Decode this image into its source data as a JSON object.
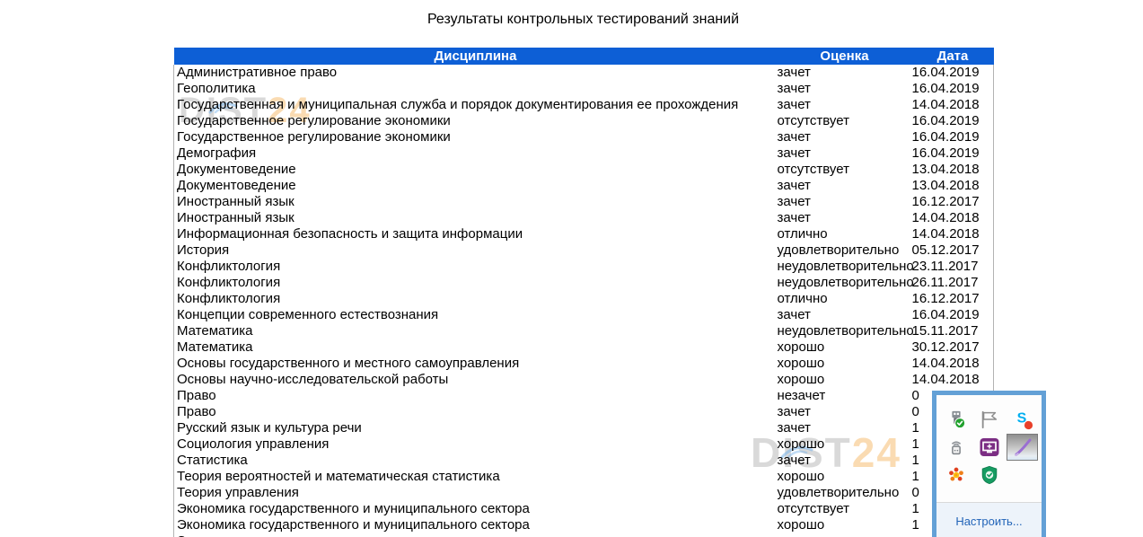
{
  "page": {
    "title": "Результаты контрольных тестирований знаний"
  },
  "colors": {
    "header_bg": "#0d5fd6",
    "header_text": "#ffffff",
    "table_border": "#b3b3b3",
    "tray_border": "#63a0d6",
    "tray_footer_bg": "#edf3fa",
    "tray_link": "#2264b8",
    "watermark_gray": "#c9c9c9",
    "watermark_orange": "#f3a63f",
    "skype_blue": "#00aff0",
    "notification_red": "#e8402a",
    "remote_purple": "#7b2d83",
    "shield_green": "#169c62",
    "pen_purple": "#9a6ed2"
  },
  "watermark": {
    "main": "DIST",
    "accent": "24"
  },
  "table": {
    "headers": [
      "Дисциплина",
      "Оценка",
      "Дата"
    ],
    "rows": [
      {
        "discipline": "Административное право",
        "grade": "зачет",
        "date": "16.04.2019"
      },
      {
        "discipline": "Геополитика",
        "grade": "зачет",
        "date": "16.04.2019"
      },
      {
        "discipline": "Государственная и муниципальная служба и порядок документирования ее прохождения",
        "grade": "зачет",
        "date": "14.04.2018"
      },
      {
        "discipline": "Государственное регулирование экономики",
        "grade": "отсутствует",
        "date": "16.04.2019"
      },
      {
        "discipline": "Государственное регулирование экономики",
        "grade": "зачет",
        "date": "16.04.2019"
      },
      {
        "discipline": "Демография",
        "grade": "зачет",
        "date": "16.04.2019"
      },
      {
        "discipline": "Документоведение",
        "grade": "отсутствует",
        "date": "13.04.2018"
      },
      {
        "discipline": "Документоведение",
        "grade": "зачет",
        "date": "13.04.2018"
      },
      {
        "discipline": "Иностранный язык",
        "grade": "зачет",
        "date": "16.12.2017"
      },
      {
        "discipline": "Иностранный язык",
        "grade": "зачет",
        "date": "14.04.2018"
      },
      {
        "discipline": "Информационная безопасность и защита информации",
        "grade": "отлично",
        "date": "14.04.2018"
      },
      {
        "discipline": "История",
        "grade": "удовлетворительно",
        "date": "05.12.2017"
      },
      {
        "discipline": "Конфликтология",
        "grade": "неудовлетворительно",
        "date": "23.11.2017"
      },
      {
        "discipline": "Конфликтология",
        "grade": "неудовлетворительно",
        "date": "26.11.2017"
      },
      {
        "discipline": "Конфликтология",
        "grade": "отлично",
        "date": "16.12.2017"
      },
      {
        "discipline": "Концепции современного естествознания",
        "grade": "зачет",
        "date": "16.04.2019"
      },
      {
        "discipline": "Математика",
        "grade": "неудовлетворительно",
        "date": "15.11.2017"
      },
      {
        "discipline": "Математика",
        "grade": "хорошо",
        "date": "30.12.2017"
      },
      {
        "discipline": "Основы государственного и местного самоуправления",
        "grade": "хорошо",
        "date": "14.04.2018"
      },
      {
        "discipline": "Основы научно-исследовательской работы",
        "grade": "хорошо",
        "date": "14.04.2018"
      },
      {
        "discipline": "Право",
        "grade": "незачет",
        "date": "0"
      },
      {
        "discipline": "Право",
        "grade": "зачет",
        "date": "0"
      },
      {
        "discipline": "Русский язык и культура речи",
        "grade": "зачет",
        "date": "1"
      },
      {
        "discipline": "Социология управления",
        "grade": "хорошо",
        "date": "1"
      },
      {
        "discipline": "Статистика",
        "grade": "зачет",
        "date": "1"
      },
      {
        "discipline": "Теория вероятностей и математическая статистика",
        "grade": "хорошо",
        "date": "1"
      },
      {
        "discipline": "Теория управления",
        "grade": "удовлетворительно",
        "date": "0"
      },
      {
        "discipline": "Экономика государственного и муниципального сектора",
        "grade": "отсутствует",
        "date": "1"
      },
      {
        "discipline": "Экономика государственного и муниципального сектора",
        "grade": "хорошо",
        "date": "1"
      },
      {
        "discipline": "Экономика государственного и муниципального сектора",
        "grade": "",
        "date": ""
      }
    ]
  },
  "tray": {
    "customize_label": "Настроить...",
    "icons": [
      "usb-safely-remove-icon",
      "action-center-flag-icon",
      "skype-icon",
      "radio-device-icon",
      "remote-control-icon",
      "pen-input-icon",
      "flower-app-icon",
      "antivirus-shield-icon"
    ]
  }
}
